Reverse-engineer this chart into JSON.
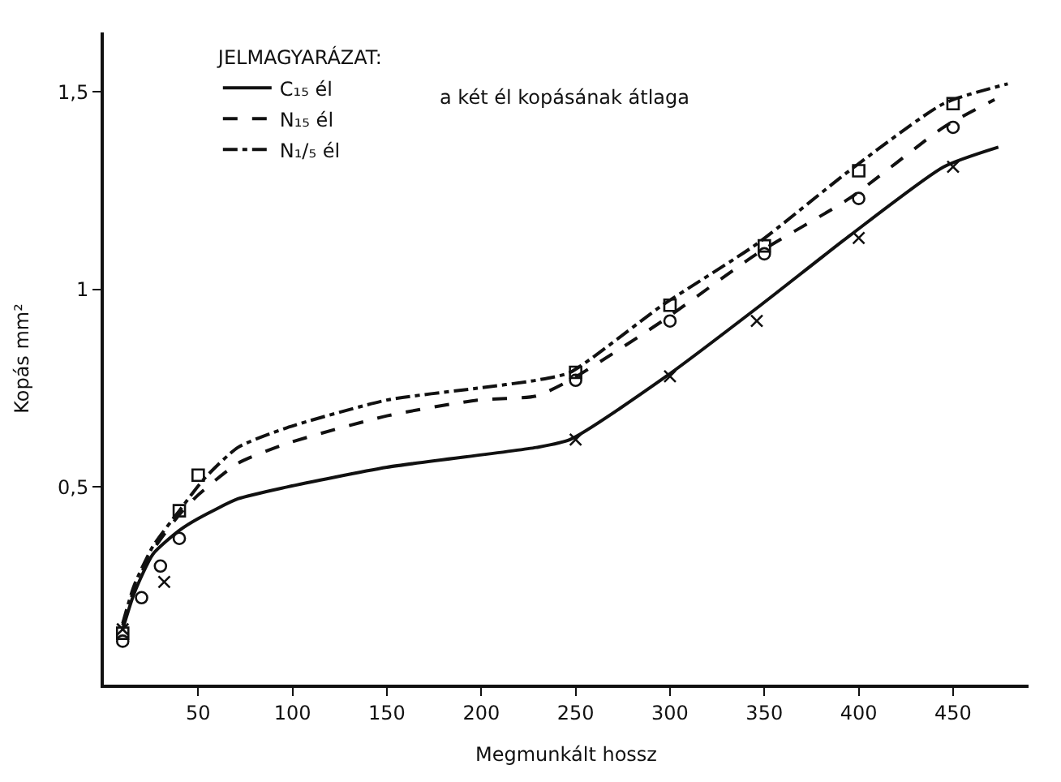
{
  "chart_data": {
    "type": "line",
    "xlabel": "Megmunkált hossz",
    "ylabel": "Kopás mm²",
    "legend_title": "JELMAGYARÁZAT:",
    "annotations": [
      "a két él kopásának átlaga"
    ],
    "xlim": [
      0,
      490
    ],
    "ylim": [
      0,
      1.65
    ],
    "xticks": [
      50,
      100,
      150,
      200,
      250,
      300,
      350,
      400,
      450
    ],
    "yticks": [
      {
        "value": 0.5,
        "label": "0,5"
      },
      {
        "value": 1,
        "label": "1"
      },
      {
        "value": 1.5,
        "label": "1,5"
      }
    ],
    "grid": false,
    "legend": "top left",
    "series": [
      {
        "name": "C₁₅ él",
        "color": "#111111",
        "line_style": "solid",
        "marker": "none",
        "x": [
          10,
          16,
          26,
          40,
          50,
          71,
          97,
          150,
          229,
          247,
          298,
          348,
          395,
          445,
          474
        ],
        "values": [
          0.14,
          0.23,
          0.33,
          0.39,
          0.42,
          0.47,
          0.5,
          0.55,
          0.6,
          0.62,
          0.78,
          0.96,
          1.135,
          1.31,
          1.36
        ]
      },
      {
        "name": "N₁₅ él",
        "color": "#111111",
        "line_style": "dashed",
        "marker": "none",
        "x": [
          10,
          16,
          26,
          40,
          50,
          71,
          97,
          150,
          198,
          229,
          247,
          296,
          346,
          395,
          445,
          472
        ],
        "values": [
          0.15,
          0.24,
          0.34,
          0.43,
          0.48,
          0.56,
          0.61,
          0.68,
          0.72,
          0.73,
          0.77,
          0.92,
          1.09,
          1.23,
          1.41,
          1.48
        ]
      },
      {
        "name": "N₁/₅ él",
        "color": "#111111",
        "line_style": "dashdot",
        "marker": "none",
        "x": [
          10,
          16,
          26,
          40,
          53,
          71,
          97,
          150,
          198,
          229,
          247,
          296,
          346,
          395,
          445,
          479
        ],
        "values": [
          0.155,
          0.25,
          0.35,
          0.44,
          0.52,
          0.6,
          0.65,
          0.72,
          0.75,
          0.77,
          0.79,
          0.96,
          1.115,
          1.3,
          1.47,
          1.52
        ]
      },
      {
        "type": "scatter",
        "color": "#111111",
        "marker": "cross",
        "x": [
          10,
          32,
          250,
          300,
          346,
          400,
          450
        ],
        "values": [
          0.14,
          0.26,
          0.62,
          0.78,
          0.92,
          1.13,
          1.31
        ]
      },
      {
        "type": "scatter",
        "color": "#111111",
        "marker": "circle",
        "x": [
          10,
          20,
          30,
          40,
          250,
          300,
          350,
          400,
          450
        ],
        "values": [
          0.11,
          0.22,
          0.3,
          0.37,
          0.77,
          0.92,
          1.09,
          1.23,
          1.41
        ]
      },
      {
        "type": "scatter",
        "color": "#111111",
        "marker": "square",
        "x": [
          10,
          40,
          50,
          250,
          300,
          350,
          400,
          450
        ],
        "values": [
          0.13,
          0.44,
          0.53,
          0.79,
          0.96,
          1.11,
          1.3,
          1.47
        ]
      }
    ]
  }
}
